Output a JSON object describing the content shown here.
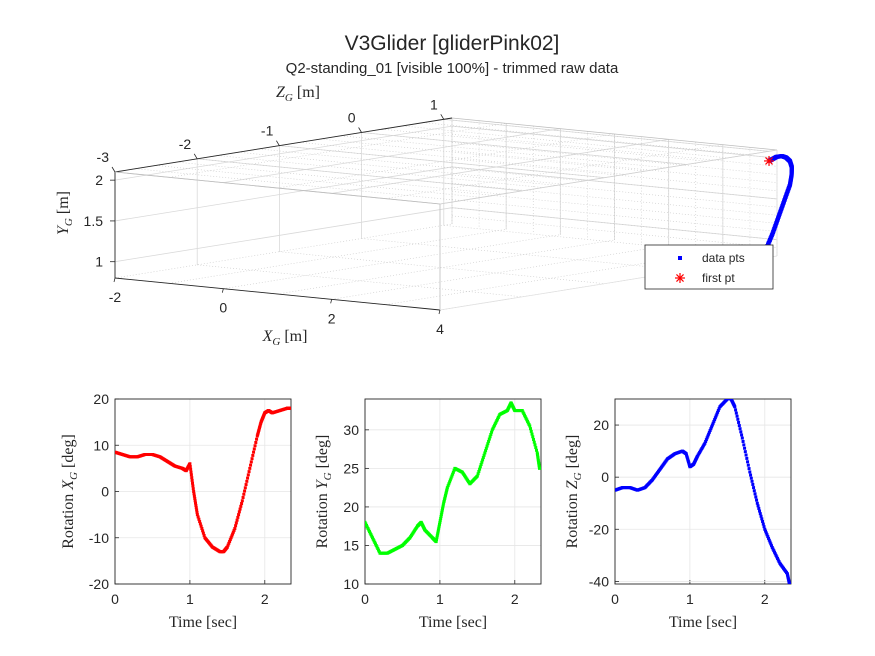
{
  "figure": {
    "title": "V3Glider [gliderPink02]",
    "subtitle": "Q2-standing_01 [visible 100%] - trimmed raw data"
  },
  "colors": {
    "x_series": "#ff0000",
    "y_series": "#00ff00",
    "z_series": "#0000ff",
    "first_pt": "#ff0000",
    "grid": "#d9d9d9",
    "axes": "#262626"
  },
  "chart_data": [
    {
      "type": "scatter3d",
      "xlabel": "X_G [m]",
      "ylabel": "Y_G [m]",
      "zlabel": "Z_G [m]",
      "x_ticks": [
        "-2",
        "0",
        "2",
        "4"
      ],
      "y_ticks": [
        "1",
        "1.5",
        "2"
      ],
      "z_ticks": [
        "-3",
        "-2",
        "-1",
        "0",
        "1"
      ],
      "xlim": [
        -2,
        4
      ],
      "ylim": [
        0.8,
        2.1
      ],
      "zlim": [
        -3,
        1.1
      ],
      "grid": true,
      "legend": {
        "placement": "right",
        "entries": [
          {
            "name": "data pts",
            "marker": "dot",
            "color": "#0000ff"
          },
          {
            "name": "first pt",
            "marker": "asterisk",
            "color": "#ff0000"
          }
        ]
      },
      "series": [
        {
          "name": "data pts",
          "x": [
            4.05,
            4.1,
            4.15,
            4.2,
            4.25,
            4.3,
            4.33,
            4.35,
            4.36,
            4.35,
            4.32,
            4.25,
            4.15,
            4.05
          ],
          "y": [
            0.95,
            1.1,
            1.25,
            1.4,
            1.55,
            1.7,
            1.82,
            1.92,
            2.0,
            2.05,
            2.07,
            2.06,
            2.02,
            1.99
          ],
          "z": [
            0.95,
            0.98,
            1.0,
            1.02,
            1.04,
            1.06,
            1.06,
            1.05,
            1.02,
            0.98,
            0.95,
            0.93,
            0.94,
            0.97
          ]
        },
        {
          "name": "first pt",
          "x": [
            4.05
          ],
          "y": [
            1.99
          ],
          "z": [
            0.97
          ]
        }
      ]
    },
    {
      "type": "scatter",
      "xlabel": "Time [sec]",
      "ylabel": "Rotation X_G [deg]",
      "xlim": [
        0,
        2.35
      ],
      "ylim": [
        -20,
        20
      ],
      "x_ticks": [
        "0",
        "1",
        "2"
      ],
      "y_ticks": [
        "-20",
        "-10",
        "0",
        "10",
        "20"
      ],
      "grid": true,
      "series": [
        {
          "color": "#ff0000",
          "x": [
            0,
            0.1,
            0.2,
            0.3,
            0.4,
            0.5,
            0.6,
            0.7,
            0.8,
            0.9,
            0.95,
            1.0,
            1.05,
            1.1,
            1.2,
            1.3,
            1.4,
            1.45,
            1.5,
            1.6,
            1.7,
            1.8,
            1.9,
            1.95,
            2.0,
            2.05,
            2.1,
            2.2,
            2.3,
            2.33
          ],
          "y": [
            8.5,
            8,
            7.5,
            7.5,
            8,
            8,
            7.5,
            6.5,
            5.5,
            5,
            4.5,
            6,
            0,
            -5,
            -10,
            -12,
            -13,
            -13,
            -12,
            -8,
            -2,
            5,
            12,
            15,
            17,
            17.5,
            17,
            17.5,
            18,
            18
          ]
        }
      ]
    },
    {
      "type": "scatter",
      "xlabel": "Time [sec]",
      "ylabel": "Rotation Y_G [deg]",
      "xlim": [
        0,
        2.35
      ],
      "ylim": [
        10,
        34
      ],
      "x_ticks": [
        "0",
        "1",
        "2"
      ],
      "y_ticks": [
        "10",
        "15",
        "20",
        "25",
        "30"
      ],
      "grid": true,
      "series": [
        {
          "color": "#00ff00",
          "x": [
            0,
            0.1,
            0.2,
            0.3,
            0.4,
            0.5,
            0.6,
            0.7,
            0.75,
            0.8,
            0.9,
            0.95,
            1.0,
            1.05,
            1.1,
            1.2,
            1.3,
            1.4,
            1.5,
            1.6,
            1.7,
            1.8,
            1.9,
            1.95,
            2.0,
            2.1,
            2.2,
            2.3,
            2.33
          ],
          "y": [
            18,
            16,
            14,
            14,
            14.5,
            15,
            16,
            17.5,
            18,
            17,
            16,
            15.5,
            18,
            20.5,
            22.5,
            25,
            24.5,
            23,
            24,
            27,
            30,
            32,
            32.5,
            33.5,
            32.5,
            32.5,
            30.5,
            27,
            25
          ]
        }
      ]
    },
    {
      "type": "scatter",
      "xlabel": "Time [sec]",
      "ylabel": "Rotation Z_G [deg]",
      "xlim": [
        0,
        2.35
      ],
      "ylim": [
        -41,
        30
      ],
      "x_ticks": [
        "0",
        "1",
        "2"
      ],
      "y_ticks": [
        "-40",
        "-20",
        "0",
        "20"
      ],
      "grid": true,
      "series": [
        {
          "color": "#0000ff",
          "x": [
            0,
            0.1,
            0.2,
            0.3,
            0.4,
            0.5,
            0.6,
            0.7,
            0.8,
            0.9,
            0.95,
            1.0,
            1.05,
            1.1,
            1.2,
            1.3,
            1.4,
            1.5,
            1.55,
            1.6,
            1.7,
            1.8,
            1.9,
            2.0,
            2.1,
            2.2,
            2.3,
            2.33
          ],
          "y": [
            -5,
            -4,
            -4,
            -5,
            -4,
            -1,
            3,
            7,
            9,
            10,
            9,
            4,
            5,
            8,
            13,
            20,
            27,
            30,
            30,
            27,
            15,
            2,
            -10,
            -20,
            -27,
            -33,
            -37,
            -41
          ]
        }
      ]
    }
  ]
}
